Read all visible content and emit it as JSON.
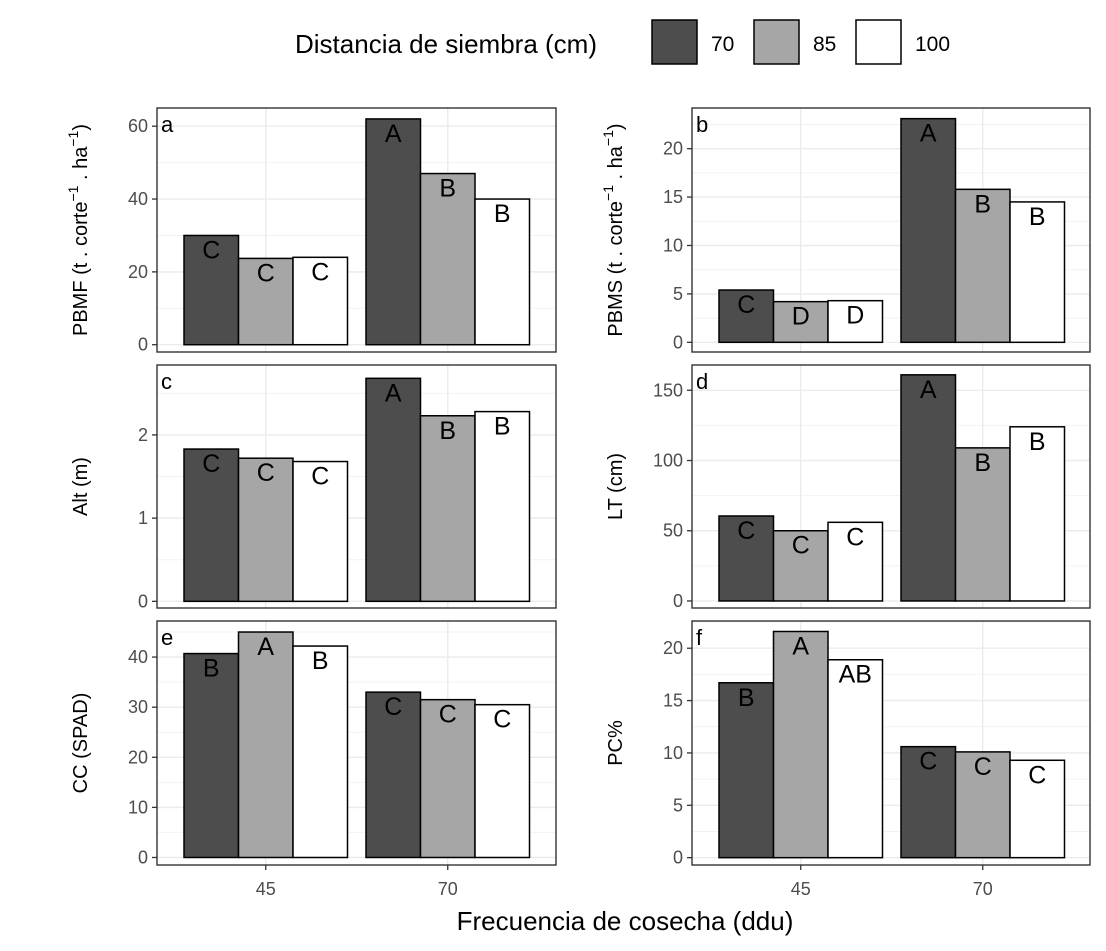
{
  "legend": {
    "title": "Distancia de siembra (cm)",
    "items": [
      {
        "label": "70",
        "color": "#4d4d4d"
      },
      {
        "label": "85",
        "color": "#a6a6a6"
      },
      {
        "label": "100",
        "color": "#ffffff"
      }
    ]
  },
  "x_axis_title": "Frecuencia de cosecha (ddu)",
  "chart_data": [
    {
      "type": "bar",
      "tag": "a",
      "ylabel": "PBMF (t . corte^-1 . ha^-1)",
      "ylabel_parts": {
        "base": "PBMF (t . corte",
        "mid": " . ha",
        "sup": "−1",
        "end": ")"
      },
      "categories": [
        "45",
        "70"
      ],
      "ylim": [
        -2,
        65
      ],
      "yticks": [
        0,
        20,
        40,
        60
      ],
      "series": [
        {
          "name": "70",
          "values": [
            30,
            62
          ],
          "letters": [
            "C",
            "A"
          ]
        },
        {
          "name": "85",
          "values": [
            23.7,
            47
          ],
          "letters": [
            "C",
            "B"
          ]
        },
        {
          "name": "100",
          "values": [
            24,
            40
          ],
          "letters": [
            "C",
            "B"
          ]
        }
      ]
    },
    {
      "type": "bar",
      "tag": "b",
      "ylabel": "PBMS (t . corte^-1 . ha^-1)",
      "ylabel_parts": {
        "base": "PBMS (t . corte",
        "mid": " . ha",
        "sup": "−1",
        "end": ")"
      },
      "categories": [
        "45",
        "70"
      ],
      "ylim": [
        -1,
        24.2
      ],
      "yticks": [
        0,
        5,
        10,
        15,
        20
      ],
      "series": [
        {
          "name": "70",
          "values": [
            5.4,
            23.1
          ],
          "letters": [
            "C",
            "A"
          ]
        },
        {
          "name": "85",
          "values": [
            4.2,
            15.8
          ],
          "letters": [
            "D",
            "B"
          ]
        },
        {
          "name": "100",
          "values": [
            4.3,
            14.5
          ],
          "letters": [
            "D",
            "B"
          ]
        }
      ]
    },
    {
      "type": "bar",
      "tag": "c",
      "ylabel": "Alt (m)",
      "categories": [
        "45",
        "70"
      ],
      "ylim": [
        -0.08,
        2.84
      ],
      "yticks": [
        0,
        1,
        2
      ],
      "series": [
        {
          "name": "70",
          "values": [
            1.83,
            2.68
          ],
          "letters": [
            "C",
            "A"
          ]
        },
        {
          "name": "85",
          "values": [
            1.72,
            2.23
          ],
          "letters": [
            "C",
            "B"
          ]
        },
        {
          "name": "100",
          "values": [
            1.68,
            2.28
          ],
          "letters": [
            "C",
            "B"
          ]
        }
      ]
    },
    {
      "type": "bar",
      "tag": "d",
      "ylabel": "LT (cm)",
      "categories": [
        "45",
        "70"
      ],
      "ylim": [
        -5,
        168
      ],
      "yticks": [
        0,
        50,
        100,
        150
      ],
      "series": [
        {
          "name": "70",
          "values": [
            60.5,
            161
          ],
          "letters": [
            "C",
            "A"
          ]
        },
        {
          "name": "85",
          "values": [
            50,
            109
          ],
          "letters": [
            "C",
            "B"
          ]
        },
        {
          "name": "100",
          "values": [
            56,
            124
          ],
          "letters": [
            "C",
            "B"
          ]
        }
      ]
    },
    {
      "type": "bar",
      "tag": "e",
      "ylabel": "CC (SPAD)",
      "categories": [
        "45",
        "70"
      ],
      "ylim": [
        -1.5,
        47.2
      ],
      "yticks": [
        0,
        10,
        20,
        30,
        40
      ],
      "series": [
        {
          "name": "70",
          "values": [
            40.7,
            33
          ],
          "letters": [
            "B",
            "C"
          ]
        },
        {
          "name": "85",
          "values": [
            45,
            31.5
          ],
          "letters": [
            "A",
            "C"
          ]
        },
        {
          "name": "100",
          "values": [
            42.2,
            30.5
          ],
          "letters": [
            "B",
            "C"
          ]
        }
      ]
    },
    {
      "type": "bar",
      "tag": "f",
      "ylabel": "PC%",
      "categories": [
        "45",
        "70"
      ],
      "ylim": [
        -0.7,
        22.6
      ],
      "yticks": [
        0,
        5,
        10,
        15,
        20
      ],
      "series": [
        {
          "name": "70",
          "values": [
            16.7,
            10.6
          ],
          "letters": [
            "B",
            "C"
          ]
        },
        {
          "name": "85",
          "values": [
            21.6,
            10.1
          ],
          "letters": [
            "A",
            "C"
          ]
        },
        {
          "name": "100",
          "values": [
            18.9,
            9.3
          ],
          "letters": [
            "AB",
            "C"
          ]
        }
      ]
    }
  ]
}
